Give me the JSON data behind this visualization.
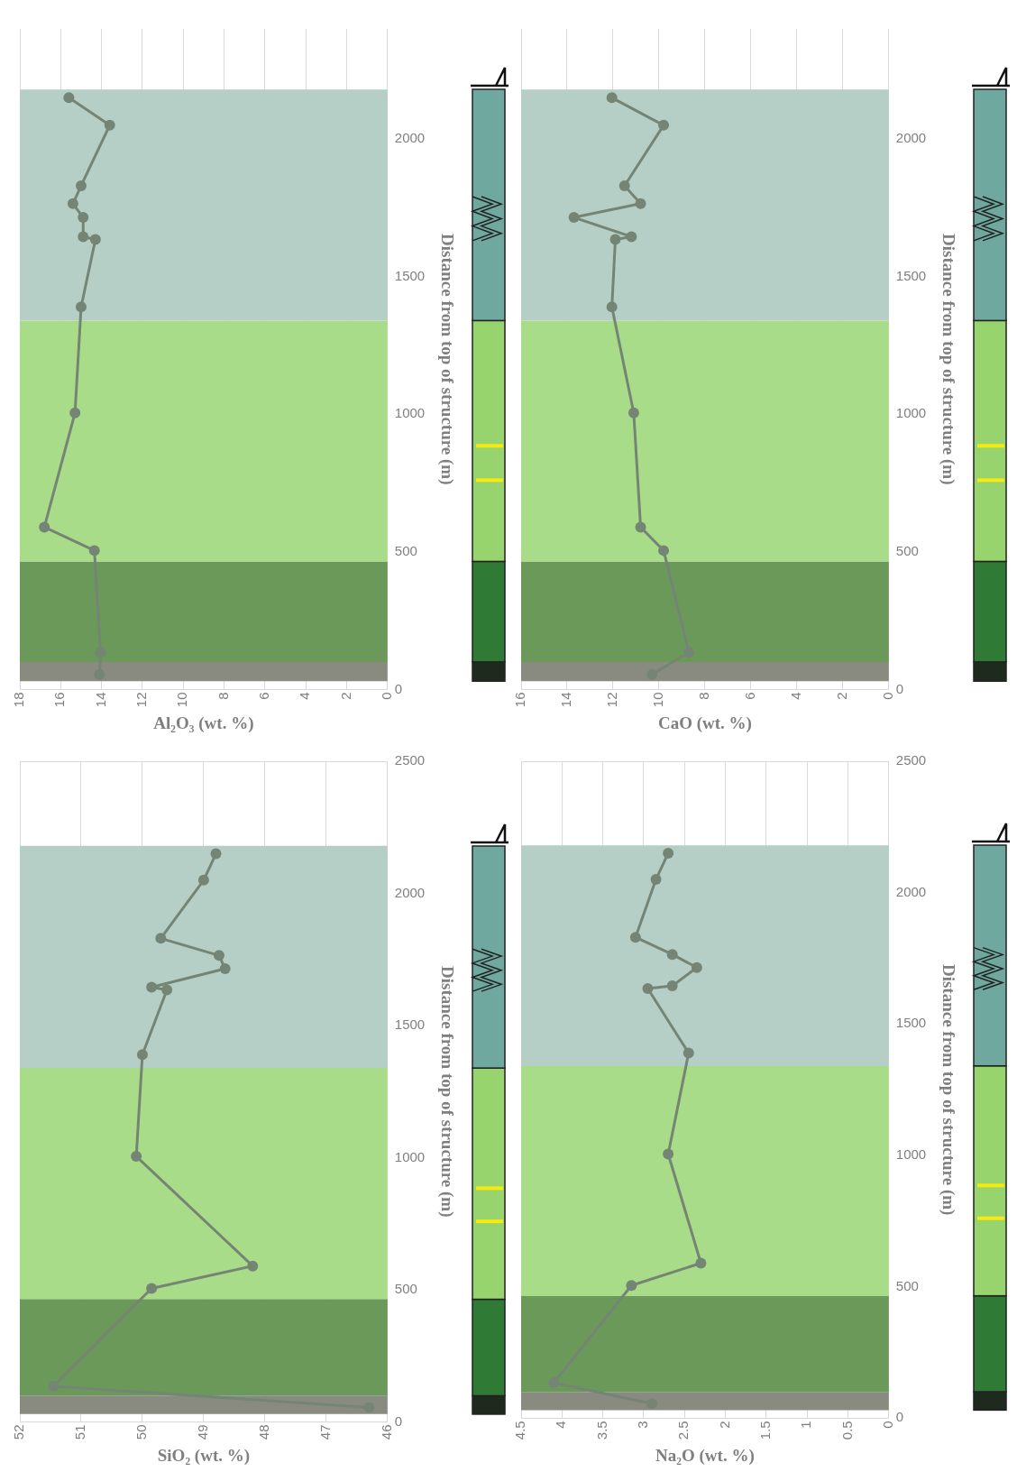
{
  "chart_data": [
    {
      "type": "line",
      "xlabel": "Al₂O₃ (wt. %)",
      "ylabel": "Distance from top of structure (m)",
      "xlim": [
        18,
        0
      ],
      "xticks": [
        0,
        2,
        4,
        6,
        8,
        10,
        12,
        14,
        16,
        18
      ],
      "ylim": [
        0,
        2400
      ],
      "yticks": [
        0,
        500,
        1000,
        1500,
        2000
      ],
      "grid": true,
      "marker": "circle",
      "series": [
        {
          "color": "#758575",
          "x": [
            14.1,
            14.05,
            14.35,
            16.8,
            15.3,
            15.0,
            14.3,
            14.9,
            14.9,
            15.4,
            15.0,
            13.6,
            15.6
          ],
          "values": [
            55,
            135,
            505,
            590,
            1005,
            1390,
            1635,
            1645,
            1715,
            1765,
            1830,
            2050,
            2150
          ]
        }
      ],
      "bands": [
        {
          "axis": "y",
          "from": 30,
          "to": 100,
          "color": "#8a8b80"
        },
        {
          "axis": "y",
          "from": 100,
          "to": 465,
          "color": "#6a995a"
        },
        {
          "axis": "y",
          "from": 465,
          "to": 1340,
          "color": "#a9dc88"
        },
        {
          "axis": "y",
          "from": 1340,
          "to": 2180,
          "color": "#b5cfc6"
        }
      ]
    },
    {
      "type": "line",
      "xlabel": "CaO (wt. %)",
      "ylabel": "Distance from top of structure (m)",
      "xlim": [
        16,
        0
      ],
      "xticks": [
        0,
        2,
        4,
        6,
        8,
        10,
        12,
        14,
        16
      ],
      "ylim": [
        0,
        2400
      ],
      "yticks": [
        0,
        500,
        1000,
        1500,
        2000
      ],
      "grid": true,
      "marker": "circle",
      "series": [
        {
          "color": "#758575",
          "x": [
            10.3,
            8.7,
            9.8,
            10.8,
            11.1,
            12.05,
            11.9,
            11.2,
            13.7,
            10.8,
            11.5,
            9.8,
            12.05
          ],
          "values": [
            55,
            135,
            505,
            590,
            1005,
            1390,
            1635,
            1645,
            1715,
            1765,
            1830,
            2050,
            2150
          ]
        }
      ],
      "bands": [
        {
          "axis": "y",
          "from": 30,
          "to": 100,
          "color": "#8a8b80"
        },
        {
          "axis": "y",
          "from": 100,
          "to": 465,
          "color": "#6a995a"
        },
        {
          "axis": "y",
          "from": 465,
          "to": 1340,
          "color": "#a9dc88"
        },
        {
          "axis": "y",
          "from": 1340,
          "to": 2180,
          "color": "#b5cfc6"
        }
      ]
    },
    {
      "type": "line",
      "xlabel": "SiO₂ (wt. %)",
      "ylabel": "Distance from top of structure (m)",
      "xlim": [
        52,
        46
      ],
      "xticks": [
        46,
        47,
        48,
        49,
        50,
        51,
        52
      ],
      "ylim": [
        0,
        2500
      ],
      "yticks": [
        0,
        500,
        1000,
        1500,
        2000,
        2500
      ],
      "grid": true,
      "marker": "circle",
      "series": [
        {
          "color": "#758575",
          "x": [
            46.3,
            51.45,
            49.85,
            48.2,
            50.1,
            50.0,
            49.6,
            49.85,
            48.65,
            48.75,
            49.7,
            49.0,
            48.8
          ],
          "values": [
            55,
            135,
            505,
            590,
            1005,
            1390,
            1635,
            1645,
            1715,
            1765,
            1830,
            2050,
            2150
          ]
        }
      ],
      "bands": [
        {
          "axis": "y",
          "from": 30,
          "to": 100,
          "color": "#8a8b80"
        },
        {
          "axis": "y",
          "from": 100,
          "to": 465,
          "color": "#6a995a"
        },
        {
          "axis": "y",
          "from": 465,
          "to": 1340,
          "color": "#a9dc88"
        },
        {
          "axis": "y",
          "from": 1340,
          "to": 2180,
          "color": "#b5cfc6"
        }
      ]
    },
    {
      "type": "line",
      "xlabel": "Na₂O (wt. %)",
      "ylabel": "Distance from top of structure (m)",
      "xlim": [
        4.5,
        0
      ],
      "xticks": [
        0,
        0.5,
        1,
        1.5,
        2,
        2.5,
        3,
        3.5,
        4,
        4.5
      ],
      "ylim": [
        0,
        2500
      ],
      "yticks": [
        0,
        500,
        1000,
        1500,
        2000,
        2500
      ],
      "grid": true,
      "marker": "circle",
      "series": [
        {
          "color": "#758575",
          "x": [
            2.9,
            4.1,
            3.15,
            2.3,
            2.7,
            2.45,
            2.95,
            2.65,
            2.35,
            2.65,
            3.1,
            2.85,
            2.7
          ],
          "values": [
            55,
            135,
            505,
            590,
            1005,
            1390,
            1635,
            1645,
            1715,
            1765,
            1830,
            2050,
            2150
          ]
        }
      ],
      "bands": [
        {
          "axis": "y",
          "from": 30,
          "to": 100,
          "color": "#8a8b80"
        },
        {
          "axis": "y",
          "from": 100,
          "to": 465,
          "color": "#6a995a"
        },
        {
          "axis": "y",
          "from": 465,
          "to": 1340,
          "color": "#a9dc88"
        },
        {
          "axis": "y",
          "from": 1340,
          "to": 2180,
          "color": "#b5cfc6"
        }
      ]
    }
  ]
}
